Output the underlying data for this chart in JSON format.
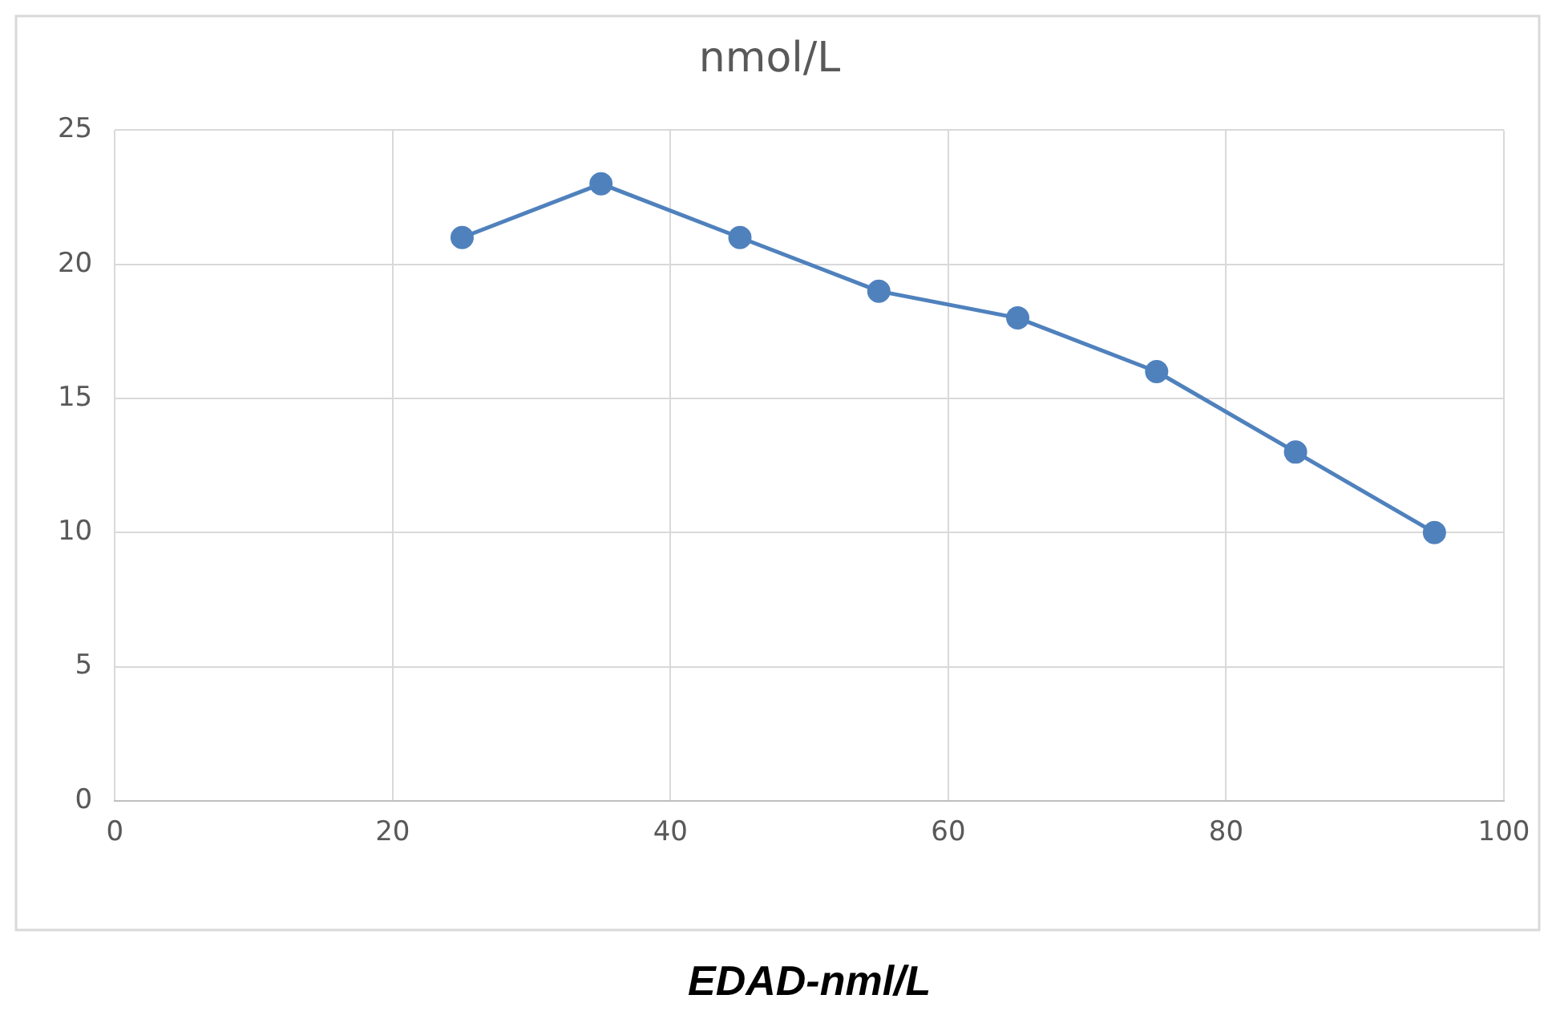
{
  "chart_data": {
    "type": "line",
    "title": "nmol/L",
    "xlabel": "EDAD-nml/L",
    "x": [
      25,
      35,
      45,
      55,
      65,
      75,
      85,
      95
    ],
    "series": [
      {
        "color": "#4f81bd",
        "values": [
          21,
          23,
          21,
          19,
          18,
          16,
          13,
          10
        ]
      }
    ],
    "xlim": [
      0,
      100
    ],
    "xticks": [
      0,
      20,
      40,
      60,
      80,
      100
    ],
    "ylim": [
      0,
      25
    ],
    "yticks": [
      0,
      5,
      10,
      15,
      20,
      25
    ],
    "grid": true,
    "legend": false,
    "marker": "circle",
    "line_style": "solid"
  }
}
